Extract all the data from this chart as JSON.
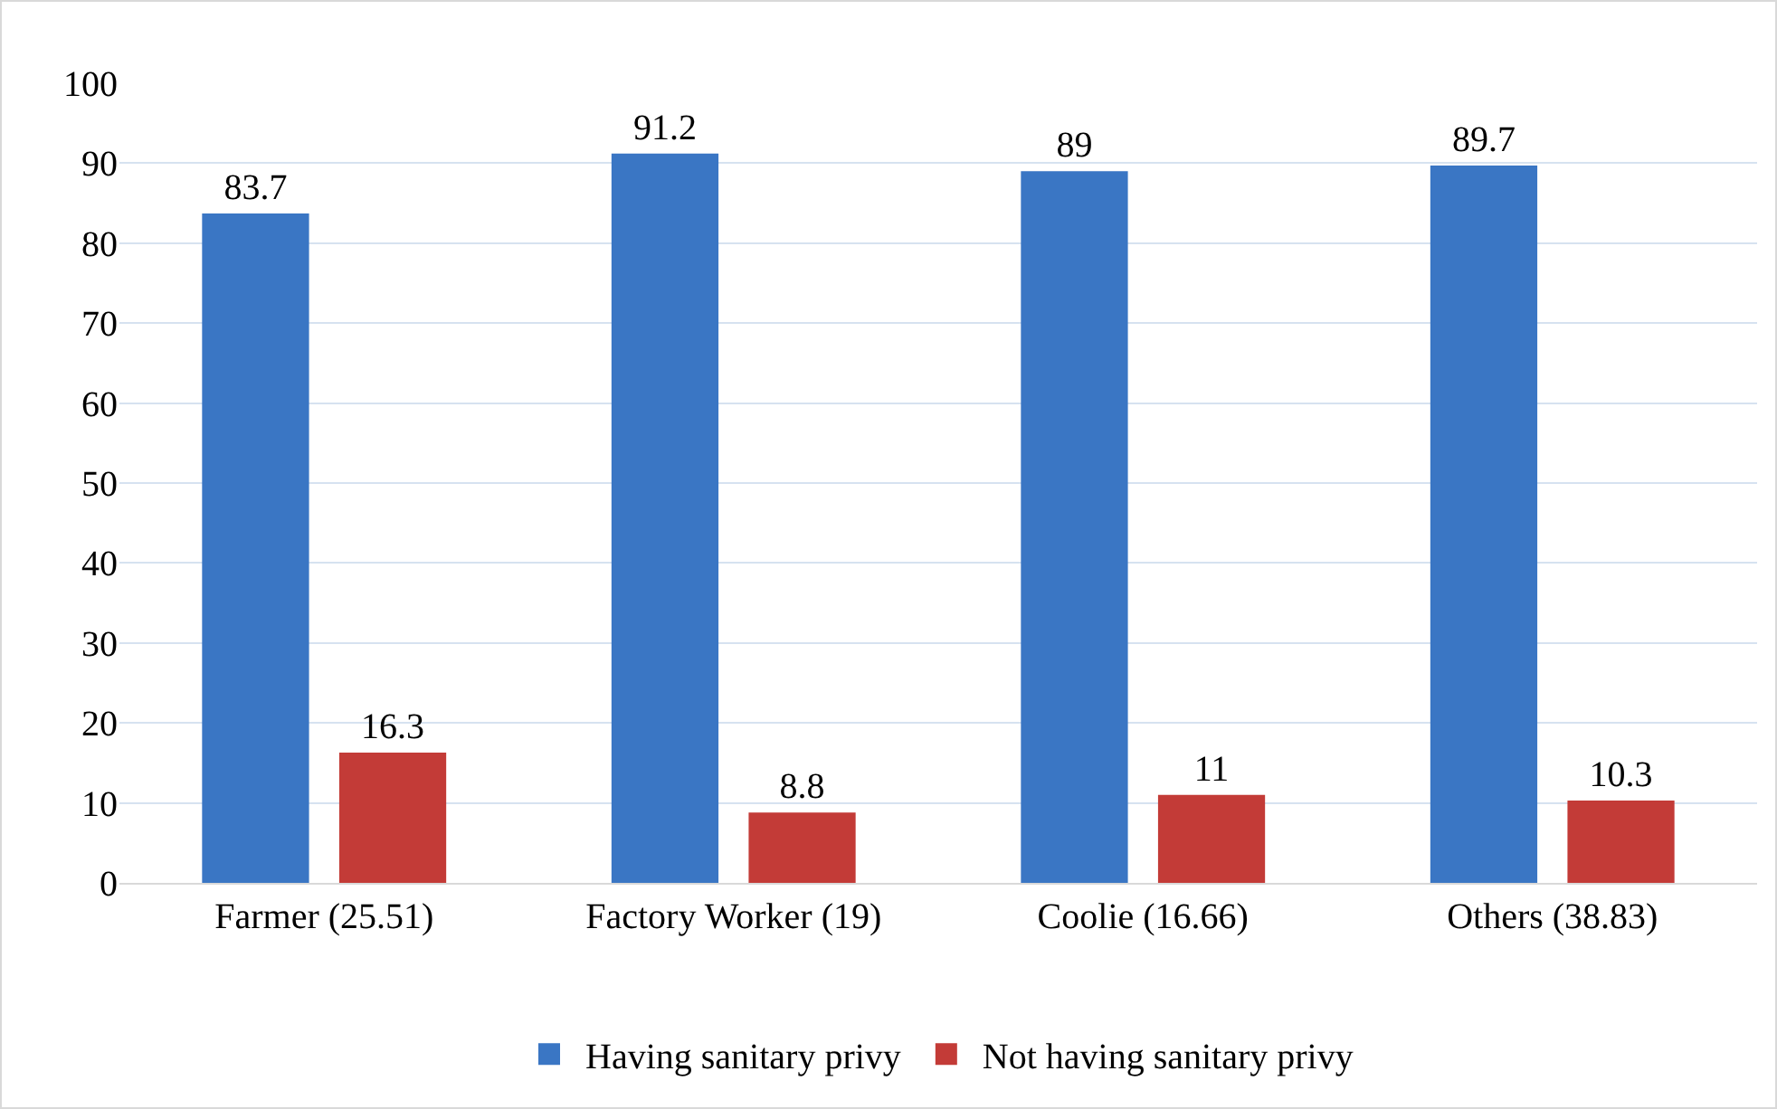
{
  "chart_data": {
    "type": "bar",
    "categories": [
      "Farmer (25.51)",
      "Factory Worker (19)",
      "Coolie (16.66)",
      "Others (38.83)"
    ],
    "series": [
      {
        "name": "Having sanitary privy",
        "color": "#3a76c4",
        "values": [
          83.7,
          91.2,
          89,
          89.7
        ]
      },
      {
        "name": "Not having sanitary privy",
        "color": "#c33b37",
        "values": [
          16.3,
          8.8,
          11,
          10.3
        ]
      }
    ],
    "ylim": [
      0,
      100
    ],
    "yticks": [
      0,
      10,
      20,
      30,
      40,
      50,
      60,
      70,
      80,
      90,
      100
    ],
    "grid": "y",
    "legend": "bottom",
    "data_labels": true
  }
}
